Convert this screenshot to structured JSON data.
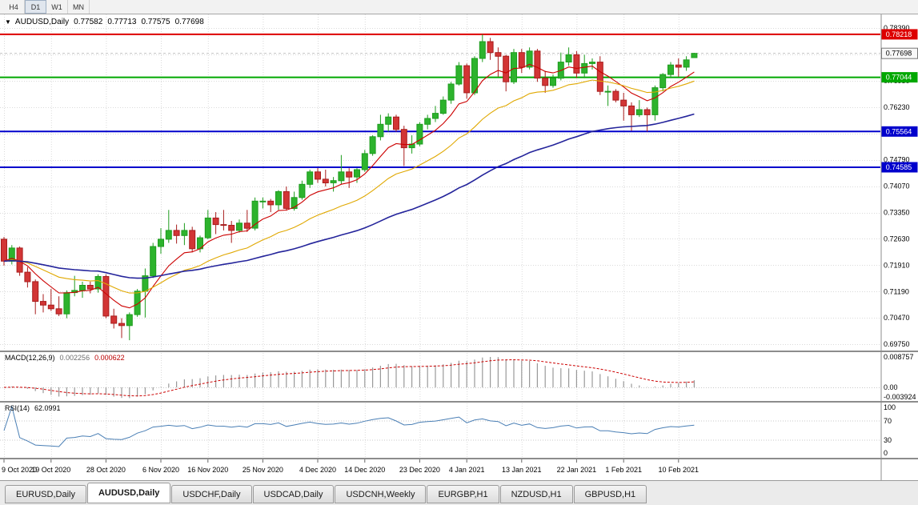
{
  "toolbar": {
    "periods": [
      {
        "label": "H4",
        "active": false
      },
      {
        "label": "D1",
        "active": true
      },
      {
        "label": "W1",
        "active": false
      },
      {
        "label": "MN",
        "active": false
      }
    ]
  },
  "chart_header": {
    "symbol": "AUDUSD,Daily",
    "open": "0.77582",
    "high": "0.77713",
    "low": "0.77575",
    "close": "0.77698"
  },
  "price_axis": {
    "ticks": [
      "0.78390",
      "0.77670",
      "0.76950",
      "0.76230",
      "0.75510",
      "0.74790",
      "0.74070",
      "0.73350",
      "0.72630",
      "0.71910",
      "0.71190",
      "0.70470",
      "0.69750"
    ]
  },
  "macd": {
    "label": "MACD(12,26,9)",
    "main_value": "0.002256",
    "signal_value": "0.000622",
    "axis_labels": [
      "0.008757",
      "0.00",
      "-0.003924"
    ]
  },
  "rsi": {
    "label": "RSI(14)",
    "value": "62.0991",
    "axis_labels": [
      "100",
      "70",
      "30",
      "0"
    ]
  },
  "tabs": [
    {
      "label": "EURUSD,Daily",
      "active": false
    },
    {
      "label": "AUDUSD,Daily",
      "active": true
    },
    {
      "label": "USDCHF,Daily",
      "active": false
    },
    {
      "label": "USDCAD,Daily",
      "active": false
    },
    {
      "label": "USDCNH,Weekly",
      "active": false
    },
    {
      "label": "EURGBP,H1",
      "active": false
    },
    {
      "label": "NZDUSD,H1",
      "active": false
    },
    {
      "label": "GBPUSD,H1",
      "active": false
    }
  ],
  "chart_data": {
    "type": "candlestick",
    "symbol": "AUDUSD",
    "timeframe": "Daily",
    "title": "AUDUSD,Daily 0.77582 0.77713 0.77575 0.77698",
    "y_range": [
      0.696,
      0.785
    ],
    "grid": true,
    "x_ticks": [
      {
        "index": 0,
        "label": "9 Oct 2020"
      },
      {
        "index": 6,
        "label": "19 Oct 2020"
      },
      {
        "index": 13,
        "label": "28 Oct 2020"
      },
      {
        "index": 20,
        "label": "6 Nov 2020"
      },
      {
        "index": 26,
        "label": "16 Nov 2020"
      },
      {
        "index": 33,
        "label": "25 Nov 2020"
      },
      {
        "index": 40,
        "label": "4 Dec 2020"
      },
      {
        "index": 46,
        "label": "14 Dec 2020"
      },
      {
        "index": 53,
        "label": "23 Dec 2020"
      },
      {
        "index": 59,
        "label": "4 Jan 2021"
      },
      {
        "index": 66,
        "label": "13 Jan 2021"
      },
      {
        "index": 73,
        "label": "22 Jan 2021"
      },
      {
        "index": 79,
        "label": "1 Feb 2021"
      },
      {
        "index": 86,
        "label": "10 Feb 2021"
      }
    ],
    "candles": [
      [
        0.7262,
        0.7268,
        0.719,
        0.7202
      ],
      [
        0.7202,
        0.7246,
        0.7193,
        0.7238
      ],
      [
        0.7238,
        0.7242,
        0.7162,
        0.7172
      ],
      [
        0.7172,
        0.7186,
        0.713,
        0.7146
      ],
      [
        0.7146,
        0.7152,
        0.7057,
        0.7092
      ],
      [
        0.7092,
        0.7112,
        0.7062,
        0.7082
      ],
      [
        0.7082,
        0.7126,
        0.7066,
        0.7072
      ],
      [
        0.7072,
        0.7106,
        0.7052,
        0.7058
      ],
      [
        0.7058,
        0.7122,
        0.7046,
        0.7116
      ],
      [
        0.7116,
        0.7162,
        0.7106,
        0.7122
      ],
      [
        0.7122,
        0.7146,
        0.7102,
        0.7136
      ],
      [
        0.7136,
        0.7146,
        0.7114,
        0.7126
      ],
      [
        0.7126,
        0.7166,
        0.7116,
        0.716
      ],
      [
        0.716,
        0.7166,
        0.7046,
        0.7052
      ],
      [
        0.7052,
        0.7072,
        0.7018,
        0.7032
      ],
      [
        0.7032,
        0.7046,
        0.6992,
        0.7026
      ],
      [
        0.7026,
        0.7062,
        0.6986,
        0.7056
      ],
      [
        0.7056,
        0.7126,
        0.705,
        0.712
      ],
      [
        0.712,
        0.7182,
        0.7048,
        0.7162
      ],
      [
        0.7162,
        0.7252,
        0.7156,
        0.7242
      ],
      [
        0.7242,
        0.7292,
        0.7222,
        0.7262
      ],
      [
        0.7262,
        0.7342,
        0.7252,
        0.7286
      ],
      [
        0.7286,
        0.7302,
        0.725,
        0.7272
      ],
      [
        0.7272,
        0.7306,
        0.7246,
        0.7286
      ],
      [
        0.7286,
        0.7296,
        0.7226,
        0.7236
      ],
      [
        0.7236,
        0.7272,
        0.7226,
        0.7266
      ],
      [
        0.7266,
        0.7342,
        0.7262,
        0.732
      ],
      [
        0.732,
        0.7336,
        0.7276,
        0.7302
      ],
      [
        0.7302,
        0.7342,
        0.7286,
        0.73
      ],
      [
        0.73,
        0.7312,
        0.7252,
        0.7286
      ],
      [
        0.7286,
        0.7316,
        0.728,
        0.7306
      ],
      [
        0.7306,
        0.7342,
        0.7282,
        0.7292
      ],
      [
        0.7292,
        0.7376,
        0.7286,
        0.7366
      ],
      [
        0.7366,
        0.7376,
        0.7346,
        0.7366
      ],
      [
        0.7366,
        0.7372,
        0.7336,
        0.7356
      ],
      [
        0.7356,
        0.7396,
        0.7342,
        0.7392
      ],
      [
        0.7392,
        0.7406,
        0.734,
        0.7346
      ],
      [
        0.7346,
        0.7392,
        0.734,
        0.7376
      ],
      [
        0.7376,
        0.7422,
        0.737,
        0.7412
      ],
      [
        0.7412,
        0.7452,
        0.7402,
        0.7446
      ],
      [
        0.7446,
        0.7456,
        0.7416,
        0.7426
      ],
      [
        0.7426,
        0.7452,
        0.7406,
        0.7416
      ],
      [
        0.7416,
        0.7432,
        0.7392,
        0.7422
      ],
      [
        0.7422,
        0.7492,
        0.7412,
        0.7446
      ],
      [
        0.7446,
        0.7456,
        0.7402,
        0.7432
      ],
      [
        0.7432,
        0.7456,
        0.7416,
        0.7452
      ],
      [
        0.7452,
        0.7506,
        0.7446,
        0.7496
      ],
      [
        0.7496,
        0.7546,
        0.749,
        0.7542
      ],
      [
        0.7542,
        0.7602,
        0.7532,
        0.7576
      ],
      [
        0.7576,
        0.7606,
        0.7556,
        0.7596
      ],
      [
        0.7596,
        0.7602,
        0.7556,
        0.7562
      ],
      [
        0.7562,
        0.7572,
        0.7462,
        0.7512
      ],
      [
        0.7512,
        0.7546,
        0.7496,
        0.7522
      ],
      [
        0.7522,
        0.7582,
        0.7516,
        0.7576
      ],
      [
        0.7576,
        0.7602,
        0.7562,
        0.7592
      ],
      [
        0.7592,
        0.7626,
        0.7582,
        0.7606
      ],
      [
        0.7606,
        0.7652,
        0.7602,
        0.7642
      ],
      [
        0.7642,
        0.7692,
        0.7632,
        0.7686
      ],
      [
        0.7686,
        0.7746,
        0.7682,
        0.7736
      ],
      [
        0.7736,
        0.7742,
        0.7646,
        0.7662
      ],
      [
        0.7662,
        0.7762,
        0.7656,
        0.7756
      ],
      [
        0.7756,
        0.78218,
        0.7746,
        0.7802
      ],
      [
        0.7802,
        0.7812,
        0.7752,
        0.7772
      ],
      [
        0.7772,
        0.7786,
        0.7706,
        0.7762
      ],
      [
        0.7762,
        0.7766,
        0.7666,
        0.7692
      ],
      [
        0.7692,
        0.7782,
        0.7686,
        0.7772
      ],
      [
        0.7772,
        0.7782,
        0.7716,
        0.7732
      ],
      [
        0.7732,
        0.7786,
        0.7726,
        0.7776
      ],
      [
        0.7776,
        0.7782,
        0.7692,
        0.7702
      ],
      [
        0.7702,
        0.7722,
        0.7662,
        0.7682
      ],
      [
        0.7682,
        0.7712,
        0.7676,
        0.7702
      ],
      [
        0.7702,
        0.7772,
        0.7696,
        0.7746
      ],
      [
        0.7746,
        0.7786,
        0.7736,
        0.7766
      ],
      [
        0.7766,
        0.7776,
        0.7702,
        0.7716
      ],
      [
        0.7716,
        0.7766,
        0.7702,
        0.7742
      ],
      [
        0.7742,
        0.7756,
        0.7726,
        0.7746
      ],
      [
        0.7746,
        0.7762,
        0.7656,
        0.7666
      ],
      [
        0.7666,
        0.7682,
        0.7626,
        0.7666
      ],
      [
        0.7666,
        0.7672,
        0.7636,
        0.7642
      ],
      [
        0.7642,
        0.7662,
        0.7586,
        0.7626
      ],
      [
        0.7626,
        0.7636,
        0.7558,
        0.7602
      ],
      [
        0.7602,
        0.7642,
        0.7596,
        0.7616
      ],
      [
        0.7616,
        0.7622,
        0.7556,
        0.7602
      ],
      [
        0.7602,
        0.7682,
        0.7586,
        0.7676
      ],
      [
        0.7676,
        0.7716,
        0.7666,
        0.7712
      ],
      [
        0.7712,
        0.7746,
        0.7702,
        0.7738
      ],
      [
        0.7738,
        0.7756,
        0.7706,
        0.7732
      ],
      [
        0.7732,
        0.7762,
        0.7722,
        0.7752
      ],
      [
        0.77582,
        0.77713,
        0.77575,
        0.77698
      ]
    ],
    "price_levels": [
      {
        "price": 0.78218,
        "label": "0.78218",
        "color": "#dd0000"
      },
      {
        "price": 0.77044,
        "label": "0.77044",
        "color": "#00a800"
      },
      {
        "price": 0.75564,
        "label": "0.75564",
        "color": "#0000cc"
      },
      {
        "price": 0.74585,
        "label": "0.74585",
        "color": "#0000cc"
      }
    ],
    "current_price": {
      "value": 0.77698,
      "label": "0.77698"
    },
    "moving_averages": [
      {
        "name": "fast",
        "period": 8,
        "color": "#cc0000"
      },
      {
        "name": "medium",
        "period": 21,
        "color": "#e0a800"
      },
      {
        "name": "slow",
        "period": 55,
        "color": "#24249b"
      }
    ],
    "indicators": [
      {
        "name": "MACD",
        "params": [
          12,
          26,
          9
        ],
        "histogram_color": "#999999",
        "signal_color": "#cc0000"
      },
      {
        "name": "RSI",
        "params": [
          14
        ],
        "line_color": "#4a7fb5",
        "levels": [
          70,
          30
        ]
      }
    ]
  }
}
